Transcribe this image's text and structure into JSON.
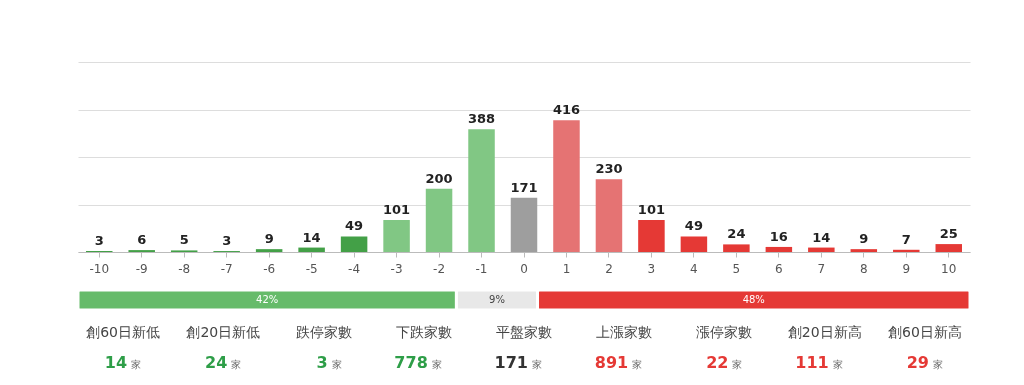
{
  "chart_data": [
    {
      "type": "bar",
      "categories": [
        "-10",
        "-9",
        "-8",
        "-7",
        "-6",
        "-5",
        "-4",
        "-3",
        "-2",
        "-1",
        "0",
        "1",
        "2",
        "3",
        "4",
        "5",
        "6",
        "7",
        "8",
        "9",
        "10"
      ],
      "values": [
        3,
        6,
        5,
        3,
        9,
        14,
        49,
        101,
        200,
        388,
        171,
        416,
        230,
        101,
        49,
        24,
        16,
        14,
        9,
        7,
        25
      ],
      "colors": [
        "#43a047",
        "#43a047",
        "#43a047",
        "#43a047",
        "#43a047",
        "#43a047",
        "#43a047",
        "#81c784",
        "#81c784",
        "#81c784",
        "#9e9e9e",
        "#e57373",
        "#e57373",
        "#e53935",
        "#e53935",
        "#e53935",
        "#e53935",
        "#e53935",
        "#e53935",
        "#e53935",
        "#e53935"
      ],
      "ylim": [
        0,
        600
      ],
      "yticks": [
        {
          "value": 0,
          "label": null
        },
        {
          "value": 150,
          "label": null
        },
        {
          "value": 300,
          "label": null
        },
        {
          "value": 450,
          "label": null
        },
        {
          "value": 600,
          "label": null
        }
      ],
      "grid": "y",
      "tick_labels": "x",
      "data_labels": true
    },
    {
      "type": "bar",
      "orientation": "horizontal",
      "stacked": true,
      "categories": [
        null
      ],
      "tick_labels": false,
      "series": [
        {
          "color": "#66bb6a",
          "values": [
            42
          ],
          "value_labels": [
            "42%"
          ]
        },
        {
          "color": "#e8e8e8",
          "values": [
            9
          ],
          "value_labels": [
            "9%"
          ]
        },
        {
          "color": "#e53935",
          "values": [
            48
          ],
          "value_labels": [
            "48%"
          ]
        }
      ]
    },
    {
      "type": "other",
      "categories": [
        "創60日新低",
        "創20日新低",
        "跌停家數",
        "下跌家數",
        "平盤家數",
        "上漲家數",
        "漲停家數",
        "創20日新高",
        "創60日新高"
      ],
      "values": [
        14,
        24,
        3,
        778,
        171,
        891,
        22,
        111,
        29
      ],
      "colors": [
        "#2e9e48",
        "#2e9e48",
        "#2e9e48",
        "#2e9e48",
        "#333333",
        "#e53935",
        "#e53935",
        "#e53935",
        "#e53935"
      ],
      "annotations": [
        "家"
      ],
      "data_labels": true
    }
  ]
}
